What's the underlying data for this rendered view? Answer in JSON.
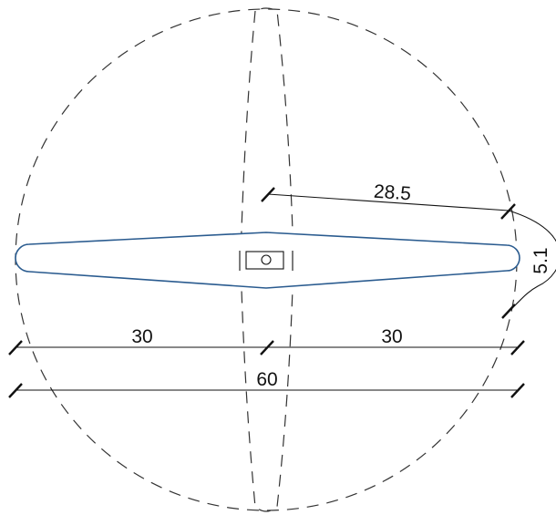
{
  "colors": {
    "blade_outline": "#2a5b8f",
    "dimension": "#111111",
    "dashed_outline": "#333333"
  },
  "dimensions": {
    "radius": "28.5",
    "arc": "5.1",
    "left_half": "30",
    "right_half": "30",
    "total": "60"
  }
}
